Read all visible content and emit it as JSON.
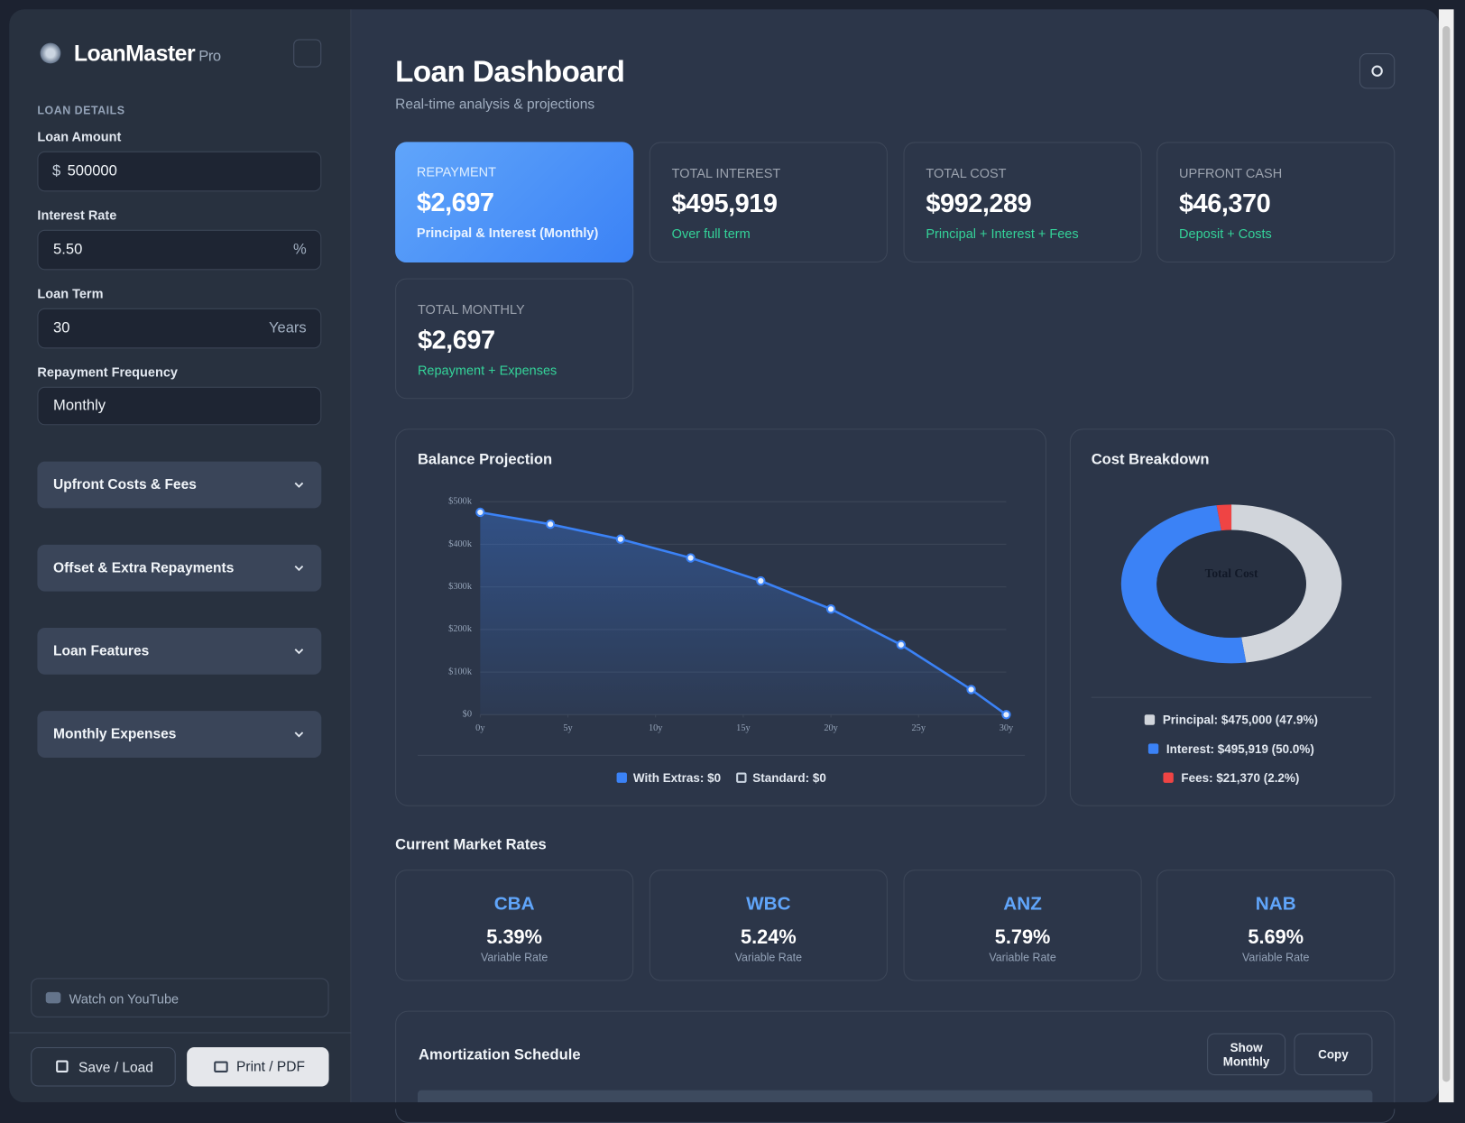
{
  "sidebar": {
    "brand": "LoanMaster",
    "brand_suffix": "Pro",
    "section": "LOAN DETAILS",
    "fields": [
      {
        "label": "Loan Amount",
        "prefix": "$",
        "value": "500000"
      },
      {
        "label": "Interest Rate",
        "value": "5.50",
        "suffix": "%"
      },
      {
        "label": "Loan Term",
        "value": "30",
        "suffix": "Years"
      },
      {
        "label": "Repayment Frequency",
        "value": "Monthly"
      }
    ],
    "accordions": [
      "Upfront Costs & Fees",
      "Offset & Extra Repayments",
      "Loan Features",
      "Monthly Expenses"
    ],
    "youtube": "Watch on YouTube",
    "buttons": [
      "Save / Load",
      "Print / PDF"
    ]
  },
  "header": {
    "title": "Loan Dashboard",
    "subtitle": "Real-time analysis & projections"
  },
  "stats": [
    {
      "label": "REPAYMENT",
      "value": "$2,697",
      "note": "Principal & Interest (Monthly)"
    },
    {
      "label": "TOTAL INTEREST",
      "value": "$495,919",
      "note": "Over full term"
    },
    {
      "label": "TOTAL COST",
      "value": "$992,289",
      "note": "Principal + Interest + Fees"
    },
    {
      "label": "UPFRONT CASH",
      "value": "$46,370",
      "note": "Deposit + Costs"
    },
    {
      "label": "TOTAL MONTHLY",
      "value": "$2,697",
      "note": "Repayment + Expenses"
    }
  ],
  "chart_data": [
    {
      "type": "line",
      "title": "Balance Projection",
      "x": [
        0,
        4,
        8,
        12,
        16,
        20,
        24,
        28,
        30
      ],
      "series": [
        {
          "name": "With Extras: $0",
          "color": "#3b82f6",
          "values": [
            475000,
            447000,
            412000,
            368000,
            314000,
            248000,
            164000,
            59000,
            0
          ]
        },
        {
          "name": "Standard: $0",
          "color": "#cbd5e1",
          "values": [
            null,
            null,
            null,
            null,
            null,
            null,
            null,
            null,
            null
          ]
        }
      ],
      "xlim": [
        0,
        30
      ],
      "xticks": [
        {
          "value": 0,
          "label": "0y"
        },
        {
          "value": 5,
          "label": "5y"
        },
        {
          "value": 10,
          "label": "10y"
        },
        {
          "value": 15,
          "label": "15y"
        },
        {
          "value": 20,
          "label": "20y"
        },
        {
          "value": 25,
          "label": "25y"
        },
        {
          "value": 30,
          "label": "30y"
        }
      ],
      "ylim": [
        0,
        500000
      ],
      "yticks": [
        {
          "value": 0,
          "label": "$0"
        },
        {
          "value": 100000,
          "label": "$100k"
        },
        {
          "value": 200000,
          "label": "$200k"
        },
        {
          "value": 300000,
          "label": "$300k"
        },
        {
          "value": 400000,
          "label": "$400k"
        },
        {
          "value": 500000,
          "label": "$500k"
        }
      ],
      "grid": true
    },
    {
      "type": "pie",
      "title": "Cost Breakdown",
      "center_label": "Total Cost",
      "values": [
        475000,
        495919,
        21370
      ],
      "value_labels": [
        "Principal: $475,000 (47.9%)",
        "Interest: $495,919 (50.0%)",
        "Fees: $21,370 (2.2%)"
      ],
      "colors": [
        "#d1d5db",
        "#3b82f6",
        "#ef4444"
      ]
    }
  ],
  "market": {
    "title": "Current Market Rates",
    "banks": [
      {
        "name": "CBA",
        "rate": "5.39%",
        "note": "Variable Rate"
      },
      {
        "name": "WBC",
        "rate": "5.24%",
        "note": "Variable Rate"
      },
      {
        "name": "ANZ",
        "rate": "5.79%",
        "note": "Variable Rate"
      },
      {
        "name": "NAB",
        "rate": "5.69%",
        "note": "Variable Rate"
      }
    ]
  },
  "amortization": {
    "title": "Amortization Schedule",
    "buttons": [
      "Show Monthly",
      "Copy"
    ]
  }
}
